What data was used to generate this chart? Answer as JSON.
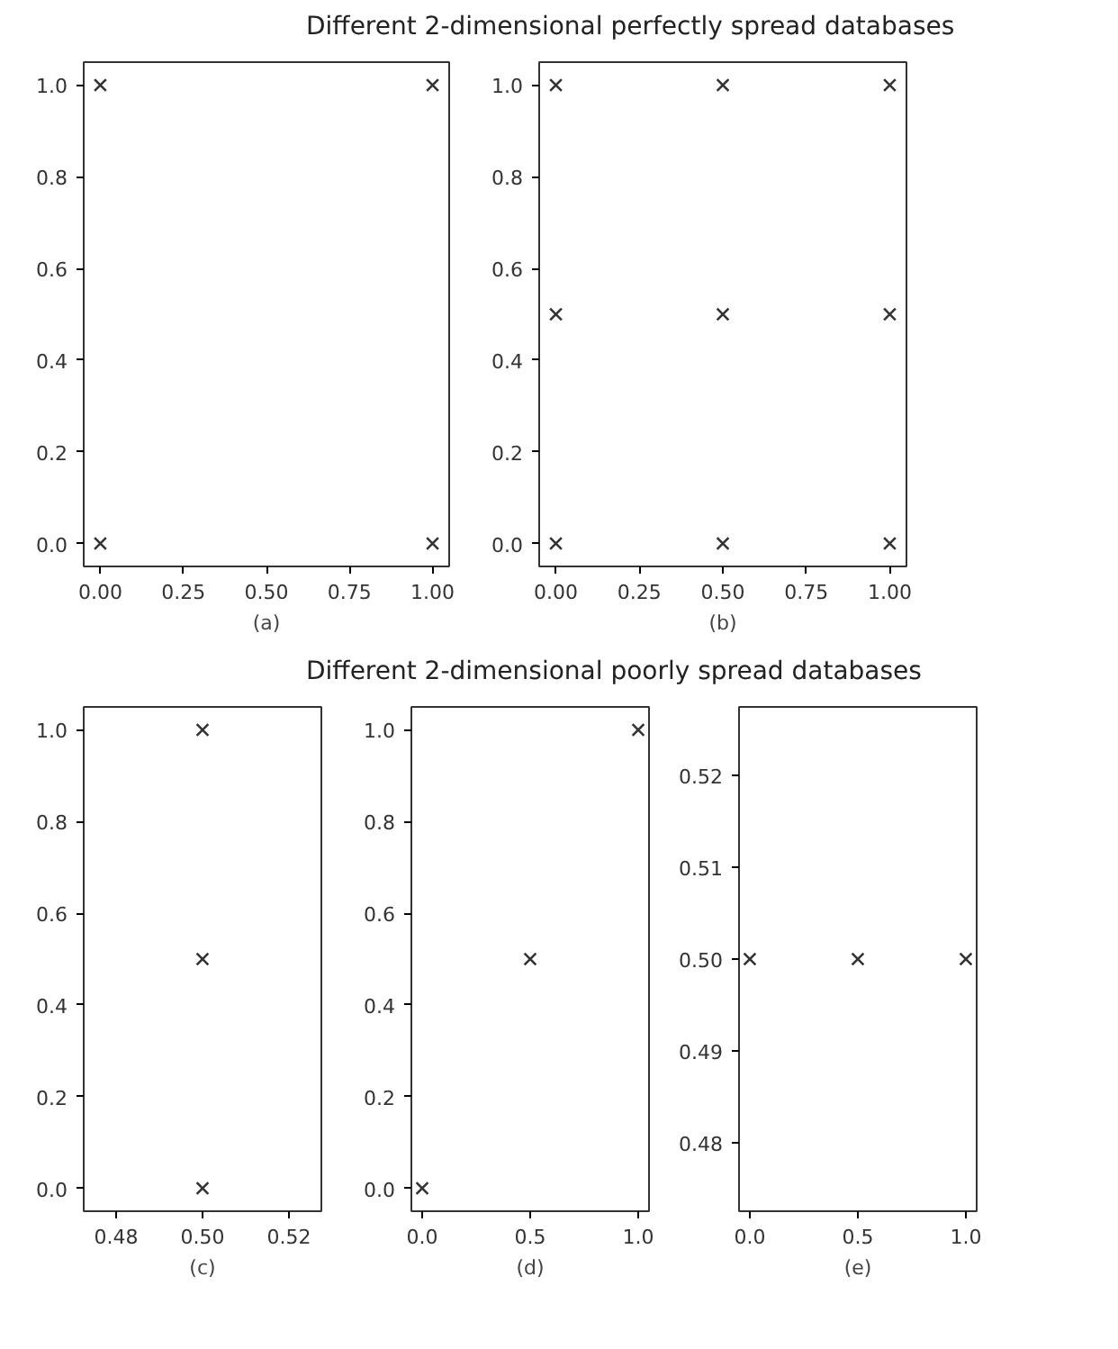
{
  "chart_data": [
    {
      "type": "scatter",
      "xlabel": "(a)",
      "marker": "cross",
      "color": "#333333",
      "x": [
        0,
        1,
        0,
        1
      ],
      "values": [
        1,
        1,
        0,
        0
      ],
      "xlim": [
        -0.05,
        1.05
      ],
      "ylim": [
        -0.05,
        1.05
      ],
      "xticks": [
        {
          "value": 0,
          "label": "0.00"
        },
        {
          "value": 0.25,
          "label": "0.25"
        },
        {
          "value": 0.5,
          "label": "0.50"
        },
        {
          "value": 0.75,
          "label": "0.75"
        },
        {
          "value": 1,
          "label": "1.00"
        }
      ],
      "yticks": [
        {
          "value": 0,
          "label": "0.0"
        },
        {
          "value": 0.2,
          "label": "0.2"
        },
        {
          "value": 0.4,
          "label": "0.4"
        },
        {
          "value": 0.6,
          "label": "0.6"
        },
        {
          "value": 0.8,
          "label": "0.8"
        },
        {
          "value": 1,
          "label": "1.0"
        }
      ]
    },
    {
      "type": "scatter",
      "title": "Different 2-dimensional perfectly spread databases",
      "xlabel": "(b)",
      "marker": "cross",
      "color": "#333333",
      "x": [
        0,
        0.5,
        1,
        0,
        0.5,
        1,
        0,
        0.5,
        1
      ],
      "values": [
        1,
        1,
        1,
        0.5,
        0.5,
        0.5,
        0,
        0,
        0
      ],
      "xlim": [
        -0.05,
        1.05
      ],
      "ylim": [
        -0.05,
        1.05
      ],
      "xticks": [
        {
          "value": 0,
          "label": "0.00"
        },
        {
          "value": 0.25,
          "label": "0.25"
        },
        {
          "value": 0.5,
          "label": "0.50"
        },
        {
          "value": 0.75,
          "label": "0.75"
        },
        {
          "value": 1,
          "label": "1.00"
        }
      ],
      "yticks": [
        {
          "value": 0,
          "label": "0.0"
        },
        {
          "value": 0.2,
          "label": "0.2"
        },
        {
          "value": 0.4,
          "label": "0.4"
        },
        {
          "value": 0.6,
          "label": "0.6"
        },
        {
          "value": 0.8,
          "label": "0.8"
        },
        {
          "value": 1,
          "label": "1.0"
        }
      ]
    },
    {
      "type": "scatter",
      "xlabel": "(c)",
      "marker": "cross",
      "color": "#333333",
      "x": [
        0.5,
        0.5,
        0.5
      ],
      "values": [
        1,
        0.5,
        0
      ],
      "xlim": [
        0.4725,
        0.5275
      ],
      "ylim": [
        -0.05,
        1.05
      ],
      "xticks": [
        0.48,
        {
          "value": 0.5,
          "label": "0.50"
        },
        0.52
      ],
      "yticks": [
        {
          "value": 0,
          "label": "0.0"
        },
        {
          "value": 0.2,
          "label": "0.2"
        },
        {
          "value": 0.4,
          "label": "0.4"
        },
        {
          "value": 0.6,
          "label": "0.6"
        },
        {
          "value": 0.8,
          "label": "0.8"
        },
        {
          "value": 1,
          "label": "1.0"
        }
      ]
    },
    {
      "type": "scatter",
      "xlabel": "(d)",
      "marker": "cross",
      "color": "#333333",
      "x": [
        0,
        0.5,
        1
      ],
      "values": [
        0,
        0.5,
        1
      ],
      "xlim": [
        -0.05,
        1.05
      ],
      "ylim": [
        -0.05,
        1.05
      ],
      "xticks": [
        {
          "value": 0,
          "label": "0.0"
        },
        0.5,
        {
          "value": 1,
          "label": "1.0"
        }
      ],
      "yticks": [
        {
          "value": 0,
          "label": "0.0"
        },
        {
          "value": 0.2,
          "label": "0.2"
        },
        {
          "value": 0.4,
          "label": "0.4"
        },
        {
          "value": 0.6,
          "label": "0.6"
        },
        {
          "value": 0.8,
          "label": "0.8"
        },
        {
          "value": 1,
          "label": "1.0"
        }
      ]
    },
    {
      "type": "scatter",
      "title": "Different 2-dimensional poorly spread databases",
      "xlabel": "(e)",
      "marker": "cross",
      "color": "#333333",
      "x": [
        0,
        0.5,
        1
      ],
      "values": [
        0.5,
        0.5,
        0.5
      ],
      "xlim": [
        -0.05,
        1.05
      ],
      "ylim": [
        0.4725,
        0.5275
      ],
      "xticks": [
        {
          "value": 0,
          "label": "0.0"
        },
        0.5,
        {
          "value": 1,
          "label": "1.0"
        }
      ],
      "yticks": [
        0.48,
        0.49,
        {
          "value": 0.5,
          "label": "0.50"
        },
        0.51,
        0.52
      ]
    }
  ]
}
